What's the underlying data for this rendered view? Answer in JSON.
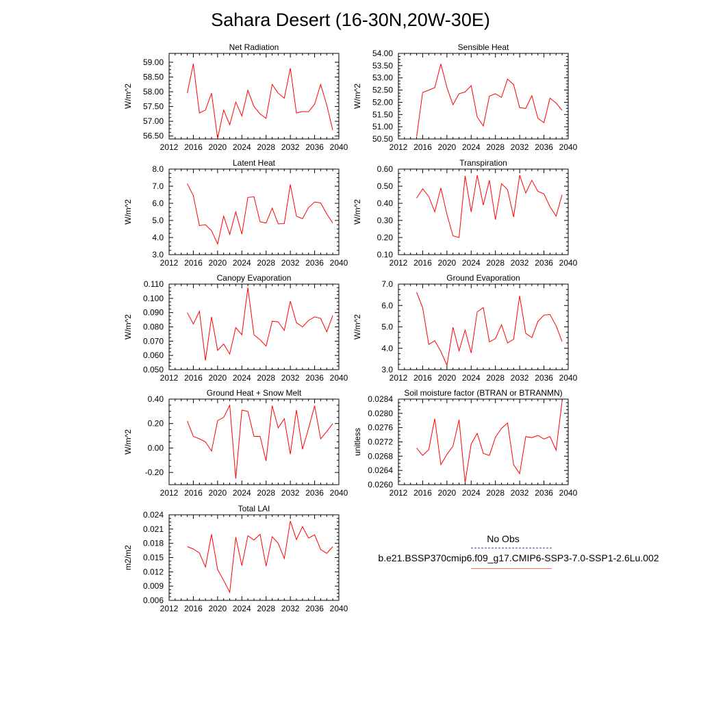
{
  "title": "Sahara Desert (16-30N,20W-30E)",
  "legend": {
    "obs_label": "No Obs",
    "model_label": "b.e21.BSSP370cmip6.f09_g17.CMIP6-SSP3-7.0-SSP1-2.6Lu.002",
    "obs_color": "#4a4aa6",
    "model_color": "#ff0000"
  },
  "chart_data": [
    {
      "type": "line",
      "title": "Net Radiation",
      "ylabel": "W/m^2",
      "xlim": [
        2012,
        2040
      ],
      "xticks": [
        "2012",
        "2016",
        "2020",
        "2024",
        "2028",
        "2032",
        "2036",
        "2040"
      ],
      "ylim": [
        56.4,
        59.3
      ],
      "yticks": [
        "56.50",
        "57.00",
        "57.50",
        "58.00",
        "58.50",
        "59.00"
      ],
      "x": [
        2015,
        2016,
        2017,
        2018,
        2019,
        2020,
        2021,
        2022,
        2023,
        2024,
        2025,
        2026,
        2027,
        2028,
        2029,
        2030,
        2031,
        2032,
        2033,
        2034,
        2035,
        2036,
        2037,
        2038,
        2039
      ],
      "series": [
        {
          "values": [
            57.95,
            58.95,
            57.28,
            57.38,
            57.95,
            56.42,
            57.38,
            56.88,
            57.65,
            57.18,
            58.05,
            57.5,
            57.25,
            57.1,
            58.25,
            57.95,
            57.78,
            58.8,
            57.28,
            57.33,
            57.32,
            57.58,
            58.25,
            57.55,
            56.7
          ]
        }
      ]
    },
    {
      "type": "line",
      "title": "Sensible Heat",
      "ylabel": "W/m^2",
      "xlim": [
        2012,
        2040
      ],
      "xticks": [
        "2012",
        "2016",
        "2020",
        "2024",
        "2028",
        "2032",
        "2036",
        "2040"
      ],
      "ylim": [
        50.5,
        54.0
      ],
      "yticks": [
        "50.50",
        "51.00",
        "51.50",
        "52.00",
        "52.50",
        "53.00",
        "53.50",
        "54.00"
      ],
      "x": [
        2015,
        2016,
        2017,
        2018,
        2019,
        2020,
        2021,
        2022,
        2023,
        2024,
        2025,
        2026,
        2027,
        2028,
        2029,
        2030,
        2031,
        2032,
        2033,
        2034,
        2035,
        2036,
        2037,
        2038,
        2039
      ],
      "series": [
        {
          "values": [
            50.6,
            52.4,
            52.5,
            52.6,
            53.57,
            52.6,
            51.9,
            52.35,
            52.42,
            52.68,
            51.4,
            51.03,
            52.25,
            52.35,
            52.2,
            52.95,
            52.72,
            51.78,
            51.75,
            52.27,
            51.35,
            51.17,
            52.17,
            51.97,
            51.67
          ]
        }
      ]
    },
    {
      "type": "line",
      "title": "Latent Heat",
      "ylabel": "W/m^2",
      "xlim": [
        2012,
        2040
      ],
      "xticks": [
        "2012",
        "2016",
        "2020",
        "2024",
        "2028",
        "2032",
        "2036",
        "2040"
      ],
      "ylim": [
        3.0,
        8.0
      ],
      "yticks": [
        "3.0",
        "4.0",
        "5.0",
        "6.0",
        "7.0",
        "8.0"
      ],
      "x": [
        2015,
        2016,
        2017,
        2018,
        2019,
        2020,
        2021,
        2022,
        2023,
        2024,
        2025,
        2026,
        2027,
        2028,
        2029,
        2030,
        2031,
        2032,
        2033,
        2034,
        2035,
        2036,
        2037,
        2038,
        2039
      ],
      "series": [
        {
          "values": [
            7.15,
            6.45,
            4.7,
            4.75,
            4.4,
            3.62,
            5.25,
            4.18,
            5.5,
            4.2,
            6.35,
            6.38,
            4.92,
            4.85,
            5.72,
            4.8,
            4.82,
            7.1,
            5.25,
            5.1,
            5.75,
            6.08,
            6.02,
            5.38,
            4.85
          ]
        }
      ]
    },
    {
      "type": "line",
      "title": "Transpiration",
      "ylabel": "W/m^2",
      "xlim": [
        2012,
        2040
      ],
      "xticks": [
        "2012",
        "2016",
        "2020",
        "2024",
        "2028",
        "2032",
        "2036",
        "2040"
      ],
      "ylim": [
        0.1,
        0.6
      ],
      "yticks": [
        "0.10",
        "0.20",
        "0.30",
        "0.40",
        "0.50",
        "0.60"
      ],
      "x": [
        2015,
        2016,
        2017,
        2018,
        2019,
        2020,
        2021,
        2022,
        2023,
        2024,
        2025,
        2026,
        2027,
        2028,
        2029,
        2030,
        2031,
        2032,
        2033,
        2034,
        2035,
        2036,
        2037,
        2038,
        2039
      ],
      "series": [
        {
          "values": [
            0.43,
            0.485,
            0.44,
            0.35,
            0.49,
            0.335,
            0.21,
            0.2,
            0.56,
            0.35,
            0.565,
            0.39,
            0.535,
            0.305,
            0.515,
            0.48,
            0.32,
            0.565,
            0.46,
            0.535,
            0.47,
            0.455,
            0.38,
            0.325,
            0.45
          ]
        }
      ]
    },
    {
      "type": "line",
      "title": "Canopy Evaporation",
      "ylabel": "W/m^2",
      "xlim": [
        2012,
        2040
      ],
      "xticks": [
        "2012",
        "2016",
        "2020",
        "2024",
        "2028",
        "2032",
        "2036",
        "2040"
      ],
      "ylim": [
        0.05,
        0.11
      ],
      "yticks": [
        "0.050",
        "0.060",
        "0.070",
        "0.080",
        "0.090",
        "0.100",
        "0.110"
      ],
      "x": [
        2015,
        2016,
        2017,
        2018,
        2019,
        2020,
        2021,
        2022,
        2023,
        2024,
        2025,
        2026,
        2027,
        2028,
        2029,
        2030,
        2031,
        2032,
        2033,
        2034,
        2035,
        2036,
        2037,
        2038,
        2039
      ],
      "series": [
        {
          "values": [
            0.09,
            0.082,
            0.091,
            0.0565,
            0.087,
            0.0635,
            0.068,
            0.061,
            0.0795,
            0.0745,
            0.1075,
            0.0745,
            0.071,
            0.0665,
            0.084,
            0.0835,
            0.0775,
            0.098,
            0.083,
            0.08,
            0.0845,
            0.087,
            0.086,
            0.0765,
            0.088
          ]
        }
      ]
    },
    {
      "type": "line",
      "title": "Ground Evaporation",
      "ylabel": "W/m^2",
      "xlim": [
        2012,
        2040
      ],
      "xticks": [
        "2012",
        "2016",
        "2020",
        "2024",
        "2028",
        "2032",
        "2036",
        "2040"
      ],
      "ylim": [
        3.0,
        7.0
      ],
      "yticks": [
        "3.0",
        "4.0",
        "5.0",
        "6.0",
        "7.0"
      ],
      "x": [
        2015,
        2016,
        2017,
        2018,
        2019,
        2020,
        2021,
        2022,
        2023,
        2024,
        2025,
        2026,
        2027,
        2028,
        2029,
        2030,
        2031,
        2032,
        2033,
        2034,
        2035,
        2036,
        2037,
        2038,
        2039
      ],
      "series": [
        {
          "values": [
            6.62,
            5.9,
            4.18,
            4.35,
            3.85,
            3.2,
            4.98,
            3.88,
            4.85,
            3.78,
            5.7,
            5.9,
            4.3,
            4.45,
            5.1,
            4.25,
            4.42,
            6.45,
            4.7,
            4.5,
            5.25,
            5.55,
            5.58,
            5.05,
            4.32
          ]
        }
      ]
    },
    {
      "type": "line",
      "title": "Ground Heat + Snow Melt",
      "ylabel": "W/m^2",
      "xlim": [
        2012,
        2040
      ],
      "xticks": [
        "2012",
        "2016",
        "2020",
        "2024",
        "2028",
        "2032",
        "2036",
        "2040"
      ],
      "ylim": [
        -0.3,
        0.4
      ],
      "yticks": [
        "-0.20",
        "0.00",
        "0.20",
        "0.40"
      ],
      "ytick_values": [
        -0.2,
        0.0,
        0.2,
        0.4
      ],
      "x": [
        2015,
        2016,
        2017,
        2018,
        2019,
        2020,
        2021,
        2022,
        2023,
        2024,
        2025,
        2026,
        2027,
        2028,
        2029,
        2030,
        2031,
        2032,
        2033,
        2034,
        2035,
        2036,
        2037,
        2038,
        2039
      ],
      "series": [
        {
          "values": [
            0.22,
            0.095,
            0.075,
            0.05,
            -0.025,
            0.225,
            0.25,
            0.35,
            -0.25,
            0.31,
            0.3,
            0.095,
            0.095,
            -0.105,
            0.345,
            0.165,
            0.24,
            -0.05,
            0.31,
            -0.01,
            0.16,
            0.345,
            0.075,
            0.135,
            0.2
          ]
        }
      ]
    },
    {
      "type": "line",
      "title": "Soil moisture factor (BTRAN or BTRANMN)",
      "ylabel": "unitless",
      "xlim": [
        2012,
        2040
      ],
      "xticks": [
        "2012",
        "2016",
        "2020",
        "2024",
        "2028",
        "2032",
        "2036",
        "2040"
      ],
      "ylim": [
        0.026,
        0.0284
      ],
      "yticks": [
        "0.0260",
        "0.0264",
        "0.0268",
        "0.0272",
        "0.0276",
        "0.0280",
        "0.0284"
      ],
      "x": [
        2015,
        2016,
        2017,
        2018,
        2019,
        2020,
        2021,
        2022,
        2023,
        2024,
        2025,
        2026,
        2027,
        2028,
        2029,
        2030,
        2031,
        2032,
        2033,
        2034,
        2035,
        2036,
        2037,
        2038,
        2039
      ],
      "series": [
        {
          "values": [
            0.02703,
            0.02682,
            0.02698,
            0.02785,
            0.02656,
            0.02685,
            0.02708,
            0.02782,
            0.02606,
            0.02714,
            0.02744,
            0.02688,
            0.02682,
            0.02733,
            0.02758,
            0.02773,
            0.02656,
            0.02631,
            0.02735,
            0.02732,
            0.02738,
            0.02728,
            0.02735,
            0.02697,
            0.02834
          ]
        }
      ]
    },
    {
      "type": "line",
      "title": "Total LAI",
      "ylabel": "m2/m2",
      "xlim": [
        2012,
        2040
      ],
      "xticks": [
        "2012",
        "2016",
        "2020",
        "2024",
        "2028",
        "2032",
        "2036",
        "2040"
      ],
      "ylim": [
        0.006,
        0.024
      ],
      "yticks": [
        "0.006",
        "0.009",
        "0.012",
        "0.015",
        "0.018",
        "0.021",
        "0.024"
      ],
      "x": [
        2015,
        2016,
        2017,
        2018,
        2019,
        2020,
        2021,
        2022,
        2023,
        2024,
        2025,
        2026,
        2027,
        2028,
        2029,
        2030,
        2031,
        2032,
        2033,
        2034,
        2035,
        2036,
        2037,
        2038,
        2039
      ],
      "series": [
        {
          "values": [
            0.0173,
            0.0168,
            0.016,
            0.013,
            0.0199,
            0.0125,
            0.0102,
            0.0077,
            0.0193,
            0.0133,
            0.0196,
            0.0187,
            0.0199,
            0.0132,
            0.0194,
            0.018,
            0.0148,
            0.0227,
            0.0188,
            0.0215,
            0.0191,
            0.0198,
            0.0167,
            0.0159,
            0.0173
          ]
        }
      ]
    }
  ]
}
